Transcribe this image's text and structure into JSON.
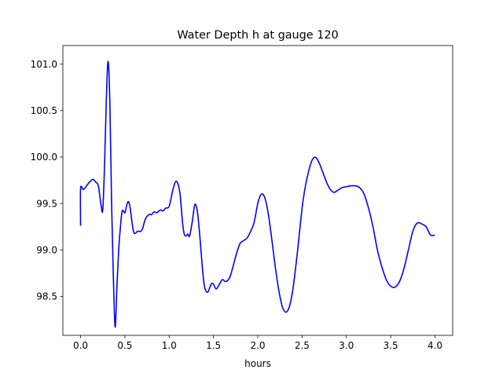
{
  "chart_data": {
    "type": "line",
    "title": "Water Depth h at gauge 120",
    "xlabel": "hours",
    "ylabel": "",
    "xlim": [
      -0.2,
      4.2
    ],
    "ylim": [
      98.08,
      101.2
    ],
    "xticks": [
      0.0,
      0.5,
      1.0,
      1.5,
      2.0,
      2.5,
      3.0,
      3.5,
      4.0
    ],
    "xtick_labels": [
      "0.0",
      "0.5",
      "1.0",
      "1.5",
      "2.0",
      "2.5",
      "3.0",
      "3.5",
      "4.0"
    ],
    "yticks": [
      98.5,
      99.0,
      99.5,
      100.0,
      100.5,
      101.0
    ],
    "ytick_labels": [
      "98.5",
      "99.0",
      "99.5",
      "100.0",
      "100.5",
      "101.0"
    ],
    "grid": false,
    "series": [
      {
        "color": "#0000ff",
        "x": [
          0.0,
          0.0,
          0.03,
          0.06,
          0.1,
          0.14,
          0.17,
          0.2,
          0.23,
          0.25,
          0.27,
          0.29,
          0.31,
          0.33,
          0.35,
          0.37,
          0.39,
          0.41,
          0.43,
          0.45,
          0.47,
          0.5,
          0.52,
          0.54,
          0.56,
          0.58,
          0.6,
          0.62,
          0.64,
          0.66,
          0.68,
          0.7,
          0.73,
          0.77,
          0.8,
          0.83,
          0.86,
          0.9,
          0.93,
          0.96,
          1.0,
          1.04,
          1.08,
          1.12,
          1.15,
          1.17,
          1.19,
          1.21,
          1.23,
          1.26,
          1.29,
          1.32,
          1.35,
          1.38,
          1.4,
          1.42,
          1.44,
          1.46,
          1.48,
          1.5,
          1.53,
          1.56,
          1.6,
          1.63,
          1.66,
          1.69,
          1.72,
          1.76,
          1.8,
          1.84,
          1.88,
          1.92,
          1.96,
          2.0,
          2.04,
          2.08,
          2.12,
          2.16,
          2.2,
          2.24,
          2.28,
          2.32,
          2.36,
          2.4,
          2.45,
          2.5,
          2.54,
          2.58,
          2.62,
          2.66,
          2.7,
          2.74,
          2.78,
          2.82,
          2.86,
          2.9,
          2.95,
          3.0,
          3.05,
          3.1,
          3.15,
          3.2,
          3.25,
          3.3,
          3.35,
          3.4,
          3.45,
          3.5,
          3.55,
          3.6,
          3.65,
          3.7,
          3.75,
          3.8,
          3.85,
          3.9,
          3.95,
          4.0
        ],
        "y": [
          99.26,
          99.66,
          99.65,
          99.68,
          99.73,
          99.76,
          99.73,
          99.69,
          99.49,
          99.43,
          99.9,
          100.6,
          101.03,
          100.6,
          99.5,
          98.7,
          98.17,
          98.6,
          99.0,
          99.25,
          99.42,
          99.4,
          99.48,
          99.52,
          99.45,
          99.3,
          99.19,
          99.18,
          99.2,
          99.2,
          99.2,
          99.23,
          99.33,
          99.38,
          99.38,
          99.41,
          99.4,
          99.43,
          99.42,
          99.45,
          99.47,
          99.64,
          99.74,
          99.62,
          99.3,
          99.17,
          99.15,
          99.17,
          99.15,
          99.3,
          99.49,
          99.4,
          99.1,
          98.75,
          98.6,
          98.55,
          98.55,
          98.6,
          98.64,
          98.63,
          98.58,
          98.62,
          98.68,
          98.66,
          98.67,
          98.72,
          98.82,
          98.96,
          99.07,
          99.1,
          99.13,
          99.2,
          99.3,
          99.5,
          99.6,
          99.56,
          99.38,
          99.1,
          98.8,
          98.55,
          98.38,
          98.33,
          98.4,
          98.6,
          99.0,
          99.45,
          99.7,
          99.87,
          99.98,
          99.99,
          99.92,
          99.82,
          99.72,
          99.65,
          99.62,
          99.64,
          99.67,
          99.68,
          99.69,
          99.69,
          99.67,
          99.6,
          99.45,
          99.25,
          99.0,
          98.82,
          98.68,
          98.61,
          98.6,
          98.66,
          98.8,
          99.0,
          99.2,
          99.29,
          99.28,
          99.25,
          99.16,
          99.16
        ]
      }
    ]
  }
}
